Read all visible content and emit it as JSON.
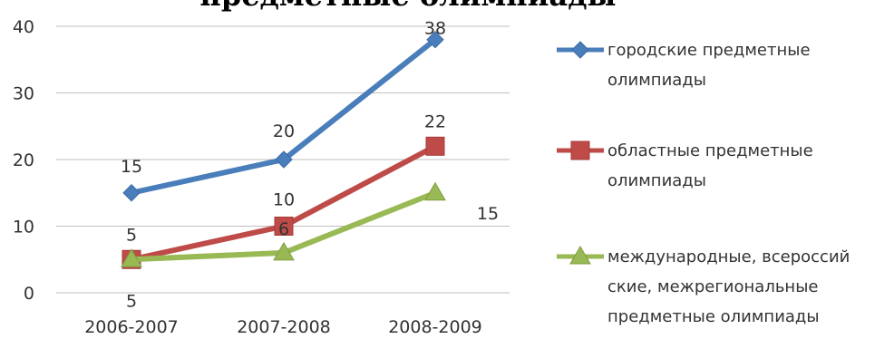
{
  "chart_data": {
    "type": "line",
    "title": "предметные олимпиады",
    "categories": [
      "2006-2007",
      "2007-2008",
      "2008-2009"
    ],
    "ylim": [
      0,
      40
    ],
    "yticks": [
      0,
      10,
      20,
      30,
      40
    ],
    "grid": true,
    "legend_position": "right",
    "series": [
      {
        "name": "городские предметные олимпиады",
        "legend_lines": [
          "городские предметные",
          "олимпиады"
        ],
        "values": [
          15,
          20,
          38
        ],
        "value_labels": [
          "15",
          "20",
          "38"
        ],
        "color": "#4a7ebb",
        "marker": "diamond"
      },
      {
        "name": "областные предметные олимпиады",
        "legend_lines": [
          "областные предметные",
          "олимпиады"
        ],
        "values": [
          5,
          10,
          22
        ],
        "value_labels": [
          "5",
          "10",
          "22"
        ],
        "color": "#be4b48",
        "marker": "square"
      },
      {
        "name": "международные, всероссийские, межрегиональные предметные олимпиады",
        "legend_lines": [
          "международные, всероссий",
          "ские, межрегиональные",
          "предметные олимпиады"
        ],
        "values": [
          5,
          6,
          15
        ],
        "value_labels": [
          "5",
          "6",
          "15"
        ],
        "color": "#98b954",
        "marker": "triangle"
      }
    ]
  }
}
